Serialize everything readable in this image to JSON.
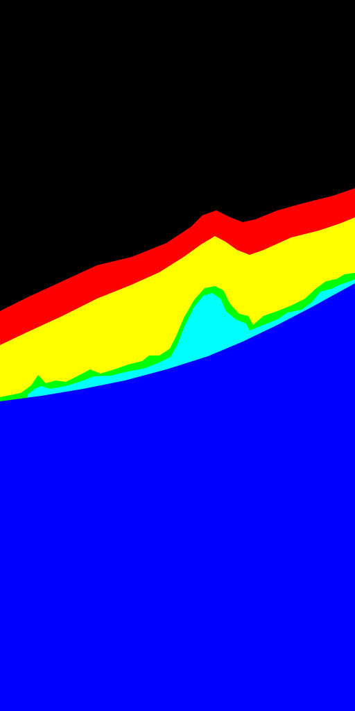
{
  "image": {
    "kind": "segmentation-mask",
    "background_color": "#000000",
    "layers": [
      {
        "name": "red",
        "color": "#ff0000"
      },
      {
        "name": "yellow",
        "color": "#ffff00"
      },
      {
        "name": "green",
        "color": "#00ff00"
      },
      {
        "name": "cyan",
        "color": "#00ffff"
      },
      {
        "name": "blue",
        "color": "#0000ff"
      }
    ]
  }
}
